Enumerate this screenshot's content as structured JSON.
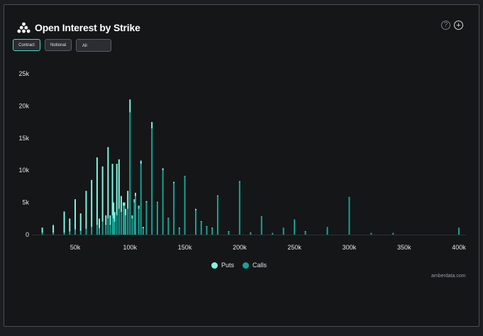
{
  "header": {
    "title": "Open Interest by Strike"
  },
  "controls": {
    "contract_label": "Contract",
    "notional_label": "Notional",
    "expiry_value": "All"
  },
  "icons": {
    "help": "question-circle-icon",
    "add": "plus-circle-icon"
  },
  "colors": {
    "puts": "#7ff5e0",
    "calls": "#16a394",
    "background": "#141618"
  },
  "credit": "amberdata.com",
  "chart_data": {
    "type": "bar",
    "stacked": true,
    "xlim": [
      15000,
      400000
    ],
    "ylim": [
      0,
      25000
    ],
    "x_ticks": [
      50000,
      100000,
      150000,
      200000,
      250000,
      300000,
      350000,
      400000
    ],
    "x_tick_labels": [
      "50k",
      "100k",
      "150k",
      "200k",
      "250k",
      "300k",
      "350k",
      "400k"
    ],
    "y_ticks": [
      0,
      5000,
      10000,
      15000,
      20000,
      25000
    ],
    "y_tick_labels": [
      "0",
      "5k",
      "10k",
      "15k",
      "20k",
      "25k"
    ],
    "legend": {
      "position": "bottom-center",
      "entries": [
        "Puts",
        "Calls"
      ]
    },
    "series": [
      {
        "name": "Calls",
        "points": [
          [
            20000,
            300
          ],
          [
            30000,
            300
          ],
          [
            40000,
            300
          ],
          [
            45000,
            500
          ],
          [
            50000,
            800
          ],
          [
            55000,
            600
          ],
          [
            60000,
            900
          ],
          [
            65000,
            1200
          ],
          [
            70000,
            1500
          ],
          [
            72000,
            1000
          ],
          [
            75000,
            2000
          ],
          [
            78000,
            1500
          ],
          [
            80000,
            2500
          ],
          [
            82000,
            1500
          ],
          [
            84000,
            3000
          ],
          [
            85000,
            2500
          ],
          [
            86000,
            2000
          ],
          [
            88000,
            3000
          ],
          [
            90000,
            4000
          ],
          [
            92000,
            3500
          ],
          [
            94000,
            4500
          ],
          [
            95000,
            4500
          ],
          [
            96000,
            3000
          ],
          [
            98000,
            4000
          ],
          [
            100000,
            19000
          ],
          [
            102000,
            2500
          ],
          [
            104000,
            5000
          ],
          [
            105000,
            6000
          ],
          [
            108000,
            4000
          ],
          [
            110000,
            11000
          ],
          [
            112000,
            1000
          ],
          [
            115000,
            5000
          ],
          [
            120000,
            16500
          ],
          [
            125000,
            5000
          ],
          [
            130000,
            10000
          ],
          [
            135000,
            2500
          ],
          [
            140000,
            8000
          ],
          [
            145000,
            1000
          ],
          [
            150000,
            9000
          ],
          [
            160000,
            3800
          ],
          [
            165000,
            2000
          ],
          [
            170000,
            1200
          ],
          [
            175000,
            1000
          ],
          [
            180000,
            6000
          ],
          [
            190000,
            500
          ],
          [
            200000,
            8200
          ],
          [
            210000,
            300
          ],
          [
            220000,
            2800
          ],
          [
            230000,
            200
          ],
          [
            240000,
            1000
          ],
          [
            250000,
            2300
          ],
          [
            260000,
            500
          ],
          [
            280000,
            1100
          ],
          [
            300000,
            5800
          ],
          [
            320000,
            200
          ],
          [
            340000,
            200
          ],
          [
            400000,
            1000
          ]
        ]
      },
      {
        "name": "Puts",
        "points": [
          [
            20000,
            800
          ],
          [
            30000,
            1200
          ],
          [
            40000,
            3300
          ],
          [
            45000,
            2000
          ],
          [
            50000,
            4700
          ],
          [
            55000,
            2700
          ],
          [
            60000,
            5900
          ],
          [
            65000,
            7300
          ],
          [
            70000,
            10500
          ],
          [
            72000,
            1500
          ],
          [
            75000,
            8600
          ],
          [
            78000,
            1500
          ],
          [
            80000,
            11100
          ],
          [
            82000,
            1500
          ],
          [
            84000,
            8000
          ],
          [
            85000,
            2500
          ],
          [
            86000,
            1500
          ],
          [
            88000,
            8000
          ],
          [
            90000,
            7700
          ],
          [
            92000,
            2500
          ],
          [
            94000,
            500
          ],
          [
            95000,
            500
          ],
          [
            96000,
            1000
          ],
          [
            98000,
            2800
          ],
          [
            100000,
            2000
          ],
          [
            102000,
            500
          ],
          [
            104000,
            500
          ],
          [
            105000,
            500
          ],
          [
            108000,
            500
          ],
          [
            110000,
            500
          ],
          [
            112000,
            200
          ],
          [
            115000,
            200
          ],
          [
            120000,
            1000
          ],
          [
            125000,
            100
          ],
          [
            130000,
            300
          ],
          [
            135000,
            100
          ],
          [
            140000,
            200
          ],
          [
            145000,
            100
          ],
          [
            150000,
            100
          ],
          [
            160000,
            200
          ],
          [
            165000,
            100
          ],
          [
            170000,
            100
          ],
          [
            175000,
            100
          ],
          [
            180000,
            100
          ],
          [
            190000,
            50
          ],
          [
            200000,
            100
          ],
          [
            210000,
            50
          ],
          [
            220000,
            50
          ],
          [
            230000,
            50
          ],
          [
            240000,
            50
          ],
          [
            250000,
            50
          ],
          [
            260000,
            50
          ],
          [
            280000,
            50
          ],
          [
            300000,
            50
          ],
          [
            320000,
            50
          ],
          [
            340000,
            50
          ],
          [
            400000,
            50
          ]
        ]
      }
    ]
  }
}
